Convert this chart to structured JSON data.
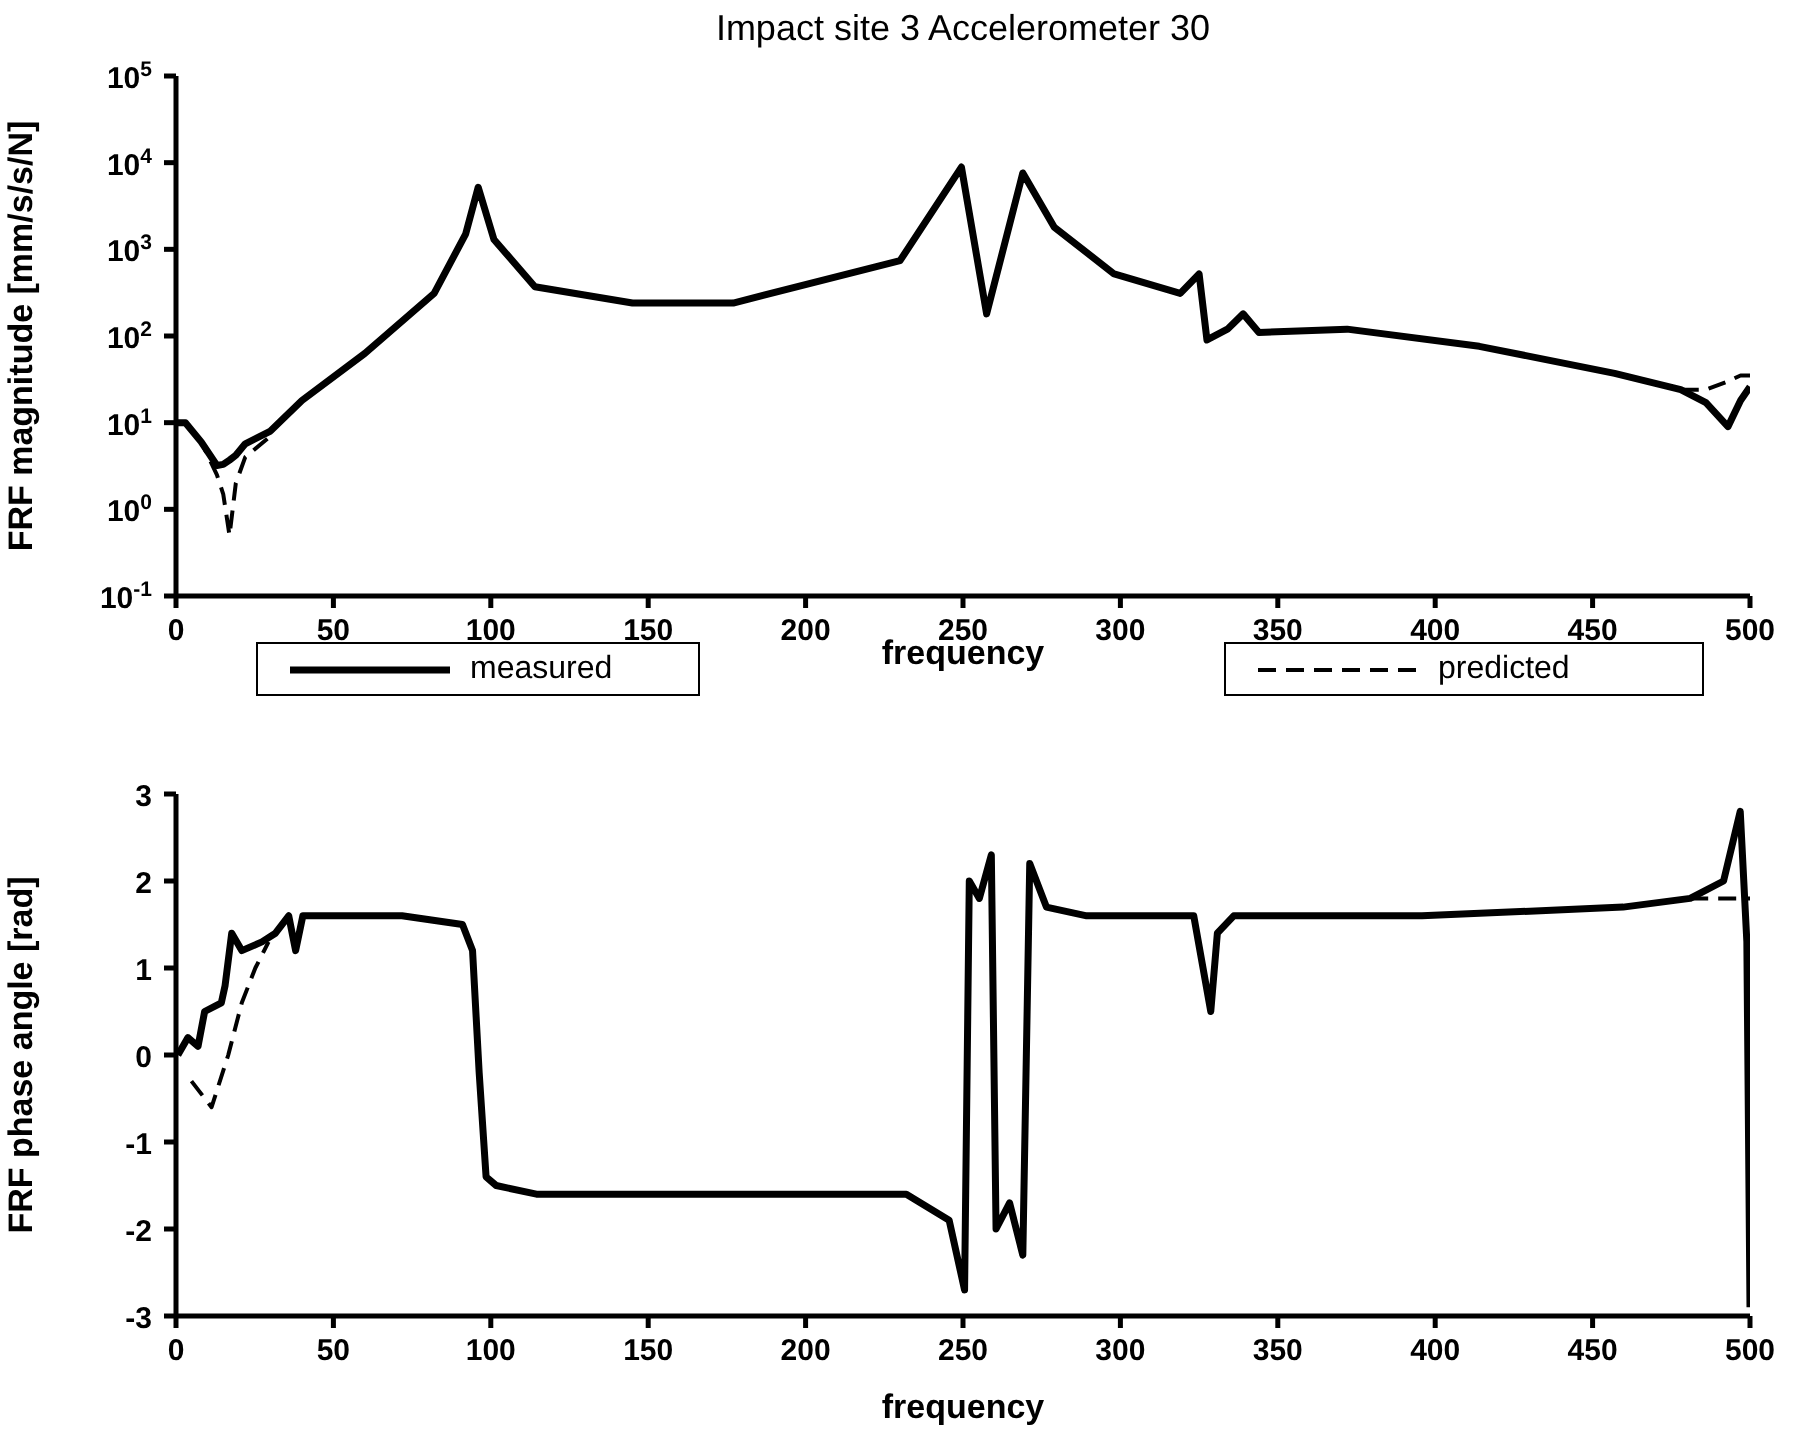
{
  "chart_data": [
    {
      "type": "line",
      "title": "Impact site 3  Accelerometer 30",
      "xlabel": "frequency",
      "ylabel": "FRF magnitude [mm/s/s/N]",
      "log": "y",
      "legend": "bottom",
      "x": [
        0,
        3,
        8,
        13,
        15,
        17,
        19,
        22,
        30,
        40,
        60,
        82,
        92,
        96,
        101,
        114,
        145,
        177,
        230,
        249.5,
        257.5,
        269,
        279,
        298,
        319,
        325,
        327.5,
        334,
        339,
        344,
        372,
        414,
        457,
        478,
        486,
        493,
        497,
        500
      ],
      "series": [
        {
          "name": "measured",
          "color": "#000000",
          "line_style": "solid",
          "values": [
            10,
            10,
            6,
            3.2,
            3.3,
            3.7,
            4.2,
            5.7,
            8,
            18,
            63,
            310,
            1500,
            5200,
            1300,
            370,
            240,
            240,
            740,
            8900,
            180,
            7600,
            1800,
            520,
            310,
            520,
            90,
            120,
            180,
            110,
            120,
            76,
            37,
            24,
            17,
            9,
            18,
            26
          ]
        },
        {
          "name": "predicted",
          "color": "#000000",
          "line_style": "dashed",
          "values": [
            10,
            10,
            6,
            2.5,
            1.5,
            0.5,
            2,
            4,
            7,
            null,
            null,
            null,
            null,
            null,
            null,
            null,
            null,
            null,
            null,
            null,
            null,
            null,
            null,
            null,
            null,
            null,
            null,
            null,
            null,
            null,
            null,
            null,
            null,
            24,
            24,
            30,
            35,
            35
          ]
        }
      ],
      "xlim": [
        0,
        500
      ],
      "xticks": [
        0,
        50,
        100,
        150,
        200,
        250,
        300,
        350,
        400,
        450,
        500
      ],
      "ylim": [
        0.1,
        100000
      ],
      "yticks": [
        {
          "value": 0.1,
          "label": "10$^{-1}$"
        },
        {
          "value": 1,
          "label": "10$^{0}$"
        },
        {
          "value": 10,
          "label": "10$^{1}$"
        },
        {
          "value": 100,
          "label": "10$^{2}$"
        },
        {
          "value": 1000,
          "label": "10$^{3}$"
        },
        {
          "value": 10000,
          "label": "10$^{4}$"
        },
        {
          "value": 100000,
          "label": "10$^{5}$"
        }
      ]
    },
    {
      "type": "line",
      "xlabel": "frequency",
      "ylabel": "FRF phase angle [rad]",
      "series": [
        {
          "color": "#000000",
          "line_style": "solid",
          "x": [
            0.6,
            3.8,
            7,
            9.1,
            14.4,
            15.6,
            17.7,
            20.9,
            27.3,
            31.6,
            35.8,
            38,
            40.3,
            55,
            71.8,
            91,
            94.2,
            96.3,
            98.5,
            101.7,
            114.5,
            232,
            245.6,
            250.5,
            252,
            255.2,
            259,
            260.5,
            264.8,
            269,
            271.2,
            276.5,
            289.3,
            323.3,
            328.7,
            330.8,
            336,
            395.8,
            459.7,
            481,
            491.6,
            496.9,
            499,
            500
          ],
          "values": [
            0,
            0.2,
            0.1,
            0.5,
            0.6,
            0.8,
            1.4,
            1.2,
            1.3,
            1.4,
            1.6,
            1.2,
            1.6,
            1.6,
            1.6,
            1.5,
            1.2,
            -0.2,
            -1.4,
            -1.5,
            -1.6,
            -1.6,
            -1.9,
            -2.7,
            2.0,
            1.8,
            2.3,
            -2.0,
            -1.7,
            -2.3,
            2.2,
            1.7,
            1.6,
            1.6,
            0.5,
            1.4,
            1.6,
            1.6,
            1.7,
            1.8,
            2.0,
            2.8,
            1.3,
            -2.9
          ]
        },
        {
          "color": "#000000",
          "line_style": "dashed",
          "x": [
            4.9,
            11.3,
            16.6,
            20.9,
            25.2,
            29.4,
            300,
            481,
            495.8,
            500
          ],
          "values": [
            -0.3,
            -0.6,
            0,
            0.6,
            1.0,
            1.3,
            null,
            1.8,
            1.8,
            1.8
          ]
        }
      ],
      "xlim": [
        0,
        500
      ],
      "xticks": [
        0,
        50,
        100,
        150,
        200,
        250,
        300,
        350,
        400,
        450,
        500
      ],
      "ylim": [
        -3,
        3
      ],
      "yticks": [
        -3,
        -2,
        -1,
        0,
        1,
        2,
        3
      ]
    }
  ]
}
